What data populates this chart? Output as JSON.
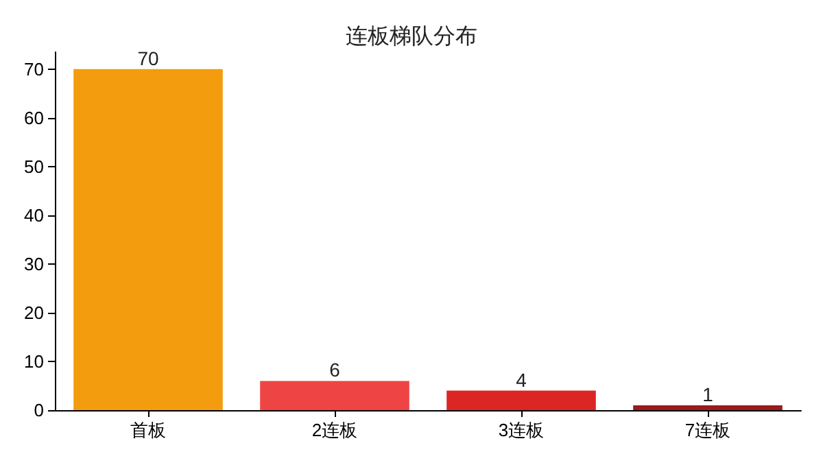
{
  "chart_data": {
    "type": "bar",
    "title": "连板梯队分布",
    "categories": [
      "首板",
      "2连板",
      "3连板",
      "7连板"
    ],
    "values": [
      70,
      6,
      4,
      1
    ],
    "colors": [
      "#f39c0e",
      "#ef4444",
      "#dc2626",
      "#991b1b"
    ],
    "ylim": [
      0,
      73.5
    ],
    "yticks": [
      0,
      10,
      20,
      30,
      40,
      50,
      60,
      70
    ],
    "grid": false,
    "data_labels": true
  }
}
